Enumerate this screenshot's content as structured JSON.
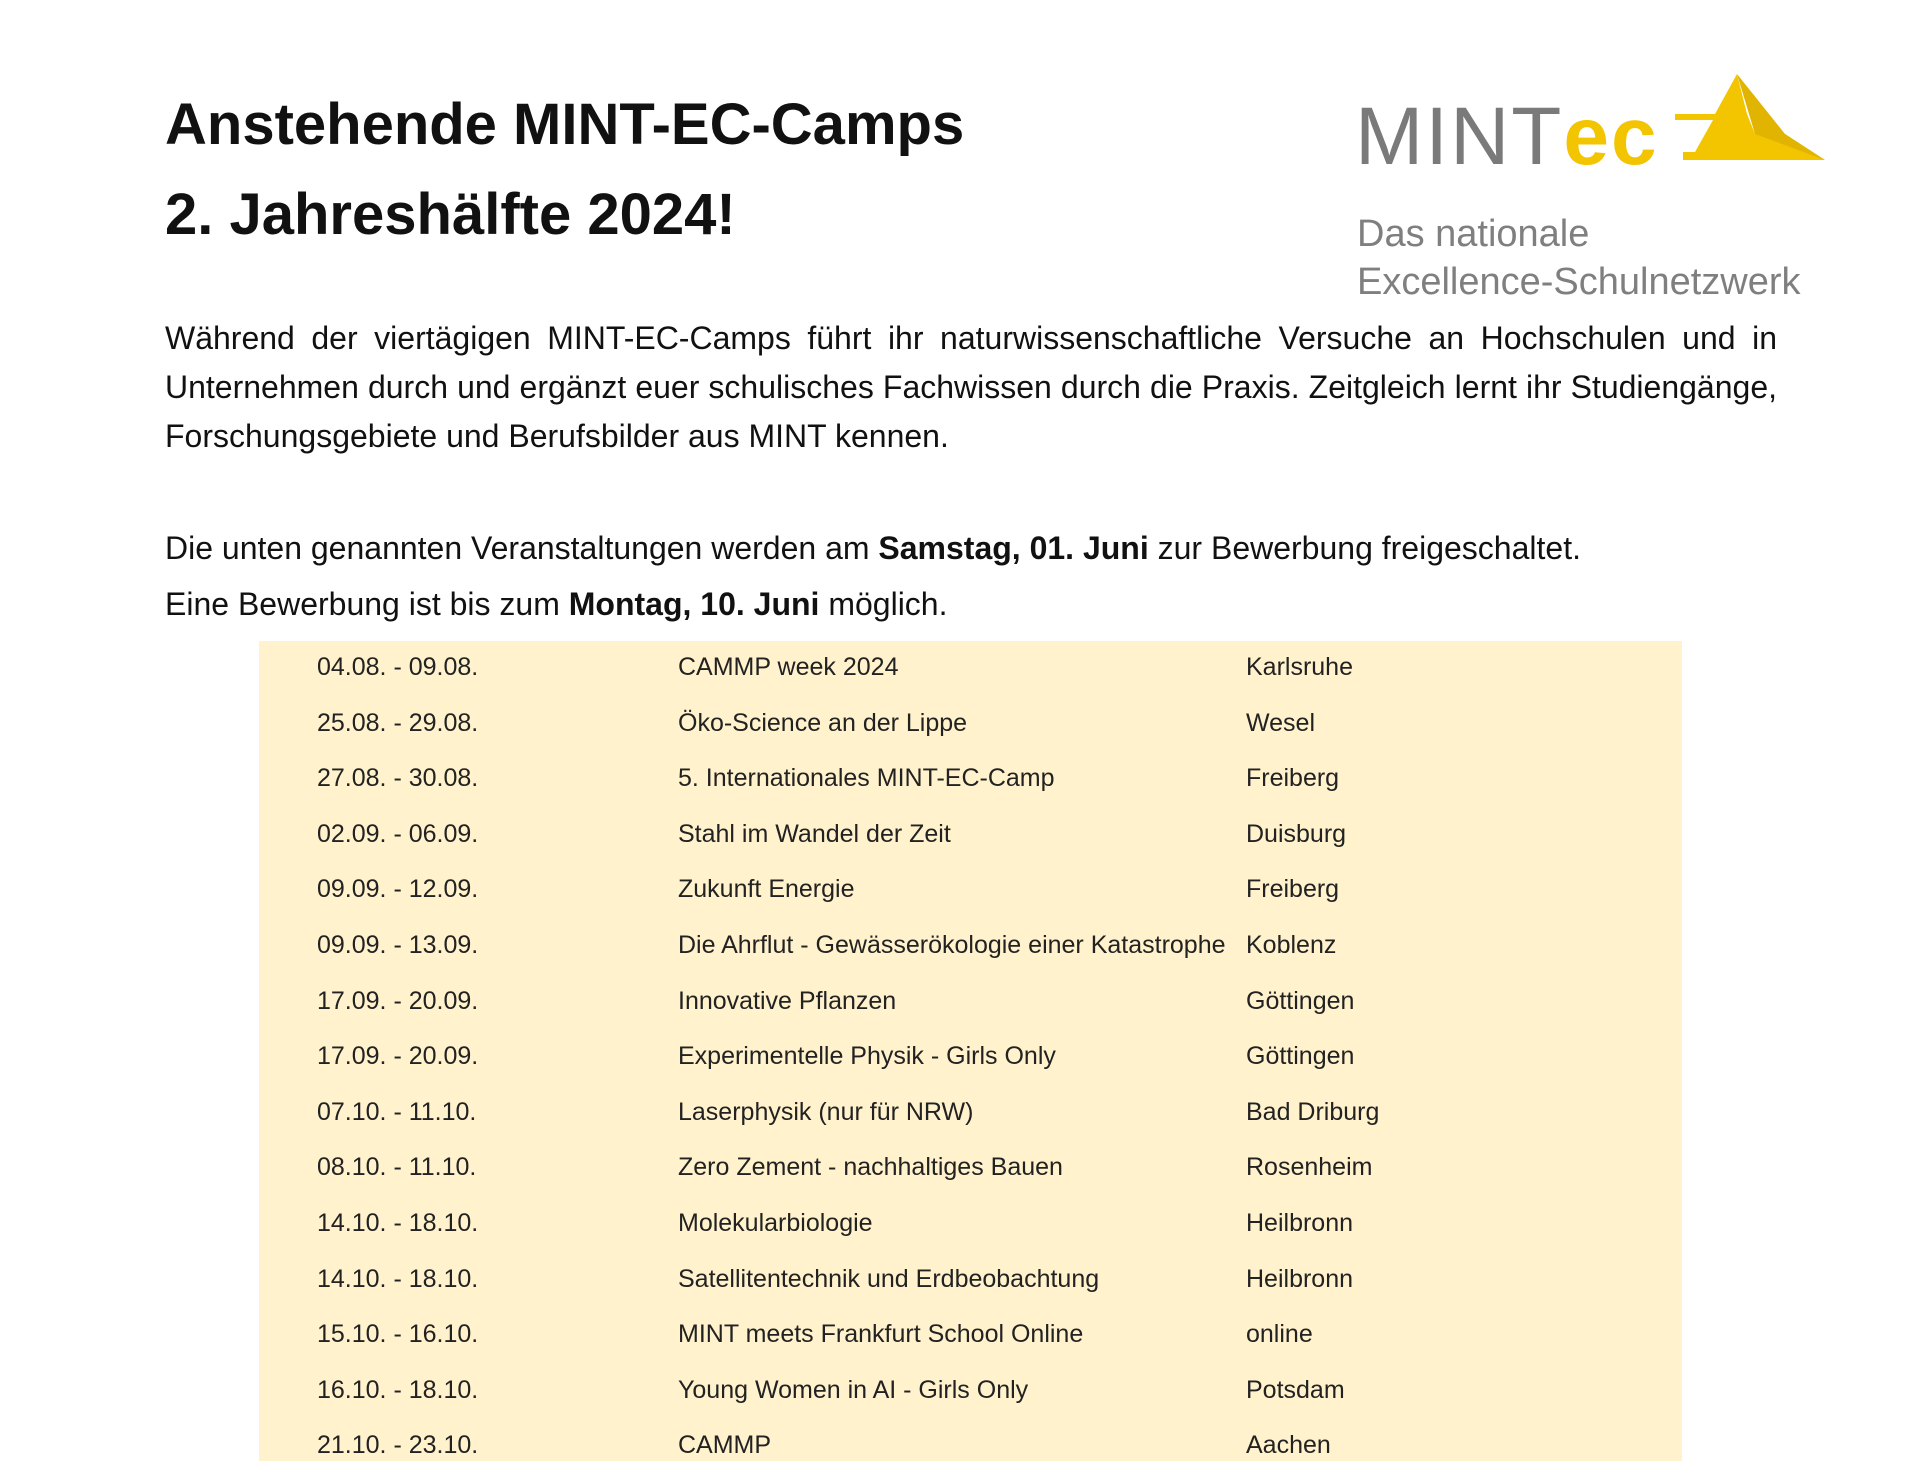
{
  "header": {
    "title_lines": [
      "Anstehende MINT-EC-Camps",
      "2. Jahreshälfte 2024!"
    ]
  },
  "logo": {
    "wordmark": [
      "MINT",
      "ec"
    ],
    "tagline": [
      "Das nationale",
      "Excellence-Schulnetzwerk"
    ]
  },
  "intro": "Während der viertägigen MINT-EC-Camps führt ihr naturwissenschaftliche Versuche an Hochschulen und in Unternehmen durch und ergänzt euer schulisches Fachwissen durch die Praxis. Zeitgleich lernt ihr Studiengänge, Forschungsgebiete und Berufsbilder aus MINT kennen.",
  "notice": [
    [
      {
        "text": "Die unten genannten Veranstaltungen werden am ",
        "bold": false
      },
      {
        "text": "Samstag, 01. Juni",
        "bold": true
      },
      {
        "text": " zur Bewerbung freigeschaltet.",
        "bold": false
      }
    ],
    [
      {
        "text": "Eine Bewerbung ist bis zum ",
        "bold": false
      },
      {
        "text": "Montag, 10. Juni",
        "bold": true
      },
      {
        "text": " möglich.",
        "bold": false
      }
    ]
  ],
  "table": {
    "rows": [
      [
        "04.08. - 09.08.",
        "CAMMP week 2024",
        "Karlsruhe"
      ],
      [
        "25.08. - 29.08.",
        "Öko-Science an der Lippe",
        "Wesel"
      ],
      [
        "27.08. - 30.08.",
        "5. Internationales MINT-EC-Camp",
        "Freiberg"
      ],
      [
        "02.09. - 06.09.",
        "Stahl im Wandel der Zeit",
        "Duisburg"
      ],
      [
        "09.09. - 12.09.",
        "Zukunft Energie",
        "Freiberg"
      ],
      [
        "09.09. - 13.09.",
        "Die Ahrflut - Gewässerökologie einer Katastrophe",
        "Koblenz"
      ],
      [
        "17.09. - 20.09.",
        "Innovative Pflanzen",
        "Göttingen"
      ],
      [
        "17.09. - 20.09.",
        "Experimentelle Physik - Girls Only",
        "Göttingen"
      ],
      [
        "07.10. - 11.10.",
        "Laserphysik (nur für NRW)",
        "Bad Driburg"
      ],
      [
        "08.10. - 11.10.",
        "Zero Zement - nachhaltiges Bauen",
        "Rosenheim"
      ],
      [
        "14.10. - 18.10.",
        "Molekularbiologie",
        "Heilbronn"
      ],
      [
        "14.10. - 18.10.",
        "Satellitentechnik und Erdbeobachtung",
        "Heilbronn"
      ],
      [
        "15.10. - 16.10.",
        "MINT meets Frankfurt School Online",
        "online"
      ],
      [
        "16.10. - 18.10.",
        "Young Women in AI - Girls Only",
        "Potsdam"
      ],
      [
        "21.10. - 23.10.",
        "CAMMP",
        "Aachen"
      ]
    ]
  }
}
